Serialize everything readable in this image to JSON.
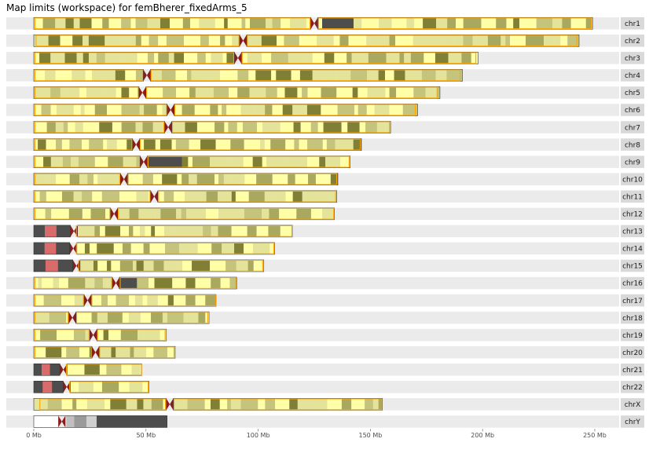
{
  "title": "Map limits (workspace) for femBherer_fixedArms_5",
  "colors": {
    "strip_bg": "#ebebeb",
    "label_bg": "#d9d9d9",
    "gneg": "#ffffa8",
    "gpos25": "#e3e39a",
    "gpos50": "#c4c47c",
    "gpos75": "#a8a85e",
    "gpos100": "#7f7f35",
    "gvar": "#4d4d4d",
    "stalk": "#d96b6b",
    "acen": "#8b1c1c",
    "map_limit": "#ffa500",
    "outline": "#333333"
  },
  "chart_data": {
    "type": "ideogram",
    "title": "Map limits (workspace) for femBherer_fixedArms_5",
    "x_unit": "Mb",
    "xlim": [
      0,
      262
    ],
    "x_ticks": [
      0,
      50,
      100,
      150,
      200,
      250
    ],
    "x_tick_labels": [
      "0 Mb",
      "50 Mb",
      "100 Mb",
      "150 Mb",
      "200 Mb",
      "250 Mb"
    ],
    "grid": false,
    "chromosomes": [
      {
        "name": "chr1",
        "length": 249.0,
        "centromere": 125.0,
        "map_start": 0.5,
        "map_end": 248.5,
        "het": [
          128.5,
          142.5
        ]
      },
      {
        "name": "chr2",
        "length": 243.0,
        "centromere": 93.3,
        "map_start": 1.0,
        "map_end": 242.0
      },
      {
        "name": "chr3",
        "length": 198.0,
        "centromere": 91.0,
        "map_start": 0.5,
        "map_end": 197.0
      },
      {
        "name": "chr4",
        "length": 191.0,
        "centromere": 50.4,
        "map_start": 0.5,
        "map_end": 190.0
      },
      {
        "name": "chr5",
        "length": 181.0,
        "centromere": 48.4,
        "map_start": 0.5,
        "map_end": 180.0
      },
      {
        "name": "chr6",
        "length": 171.0,
        "centromere": 61.0,
        "map_start": 0.5,
        "map_end": 170.0
      },
      {
        "name": "chr7",
        "length": 159.0,
        "centromere": 59.9,
        "map_start": 0.5,
        "map_end": 158.5
      },
      {
        "name": "chr8",
        "length": 146.0,
        "centromere": 45.6,
        "map_start": 0.5,
        "map_end": 145.5
      },
      {
        "name": "chr9",
        "length": 141.0,
        "centromere": 49.0,
        "map_start": 0.5,
        "map_end": 140.5,
        "het": [
          51.0,
          66.0
        ]
      },
      {
        "name": "chr10",
        "length": 135.5,
        "centromere": 40.2,
        "map_start": 0.5,
        "map_end": 135.0
      },
      {
        "name": "chr11",
        "length": 135.0,
        "centromere": 53.7,
        "map_start": 0.5,
        "map_end": 134.5
      },
      {
        "name": "chr12",
        "length": 133.9,
        "centromere": 35.8,
        "map_start": 0.5,
        "map_end": 133.5
      },
      {
        "name": "chr13",
        "length": 115.2,
        "centromere": 17.9,
        "map_start": 19.0,
        "map_end": 115.0,
        "short_arm": true
      },
      {
        "name": "chr14",
        "length": 107.3,
        "centromere": 17.6,
        "map_start": 19.0,
        "map_end": 107.0,
        "short_arm": true
      },
      {
        "name": "chr15",
        "length": 102.5,
        "centromere": 19.0,
        "map_start": 20.0,
        "map_end": 102.0,
        "short_arm": true
      },
      {
        "name": "chr16",
        "length": 90.4,
        "centromere": 36.6,
        "map_start": 0.5,
        "map_end": 90.0,
        "het": [
          38.0,
          46.0
        ]
      },
      {
        "name": "chr17",
        "length": 81.2,
        "centromere": 24.0,
        "map_start": 0.5,
        "map_end": 81.0
      },
      {
        "name": "chr18",
        "length": 78.1,
        "centromere": 17.2,
        "map_start": 0.5,
        "map_end": 77.5
      },
      {
        "name": "chr19",
        "length": 59.1,
        "centromere": 26.5,
        "map_start": 0.5,
        "map_end": 58.5
      },
      {
        "name": "chr20",
        "length": 63.0,
        "centromere": 27.5,
        "map_start": 0.5,
        "map_end": 62.5
      },
      {
        "name": "chr21",
        "length": 48.1,
        "centromere": 13.2,
        "map_start": 14.5,
        "map_end": 48.0,
        "short_arm": true
      },
      {
        "name": "chr22",
        "length": 51.3,
        "centromere": 14.7,
        "map_start": 16.0,
        "map_end": 51.0,
        "short_arm": true
      },
      {
        "name": "chrX",
        "length": 155.3,
        "centromere": 60.6,
        "map_start": 2.7,
        "map_end": 155.0
      },
      {
        "name": "chrY",
        "length": 59.4,
        "centromere": 12.5,
        "chrY": true
      }
    ]
  }
}
